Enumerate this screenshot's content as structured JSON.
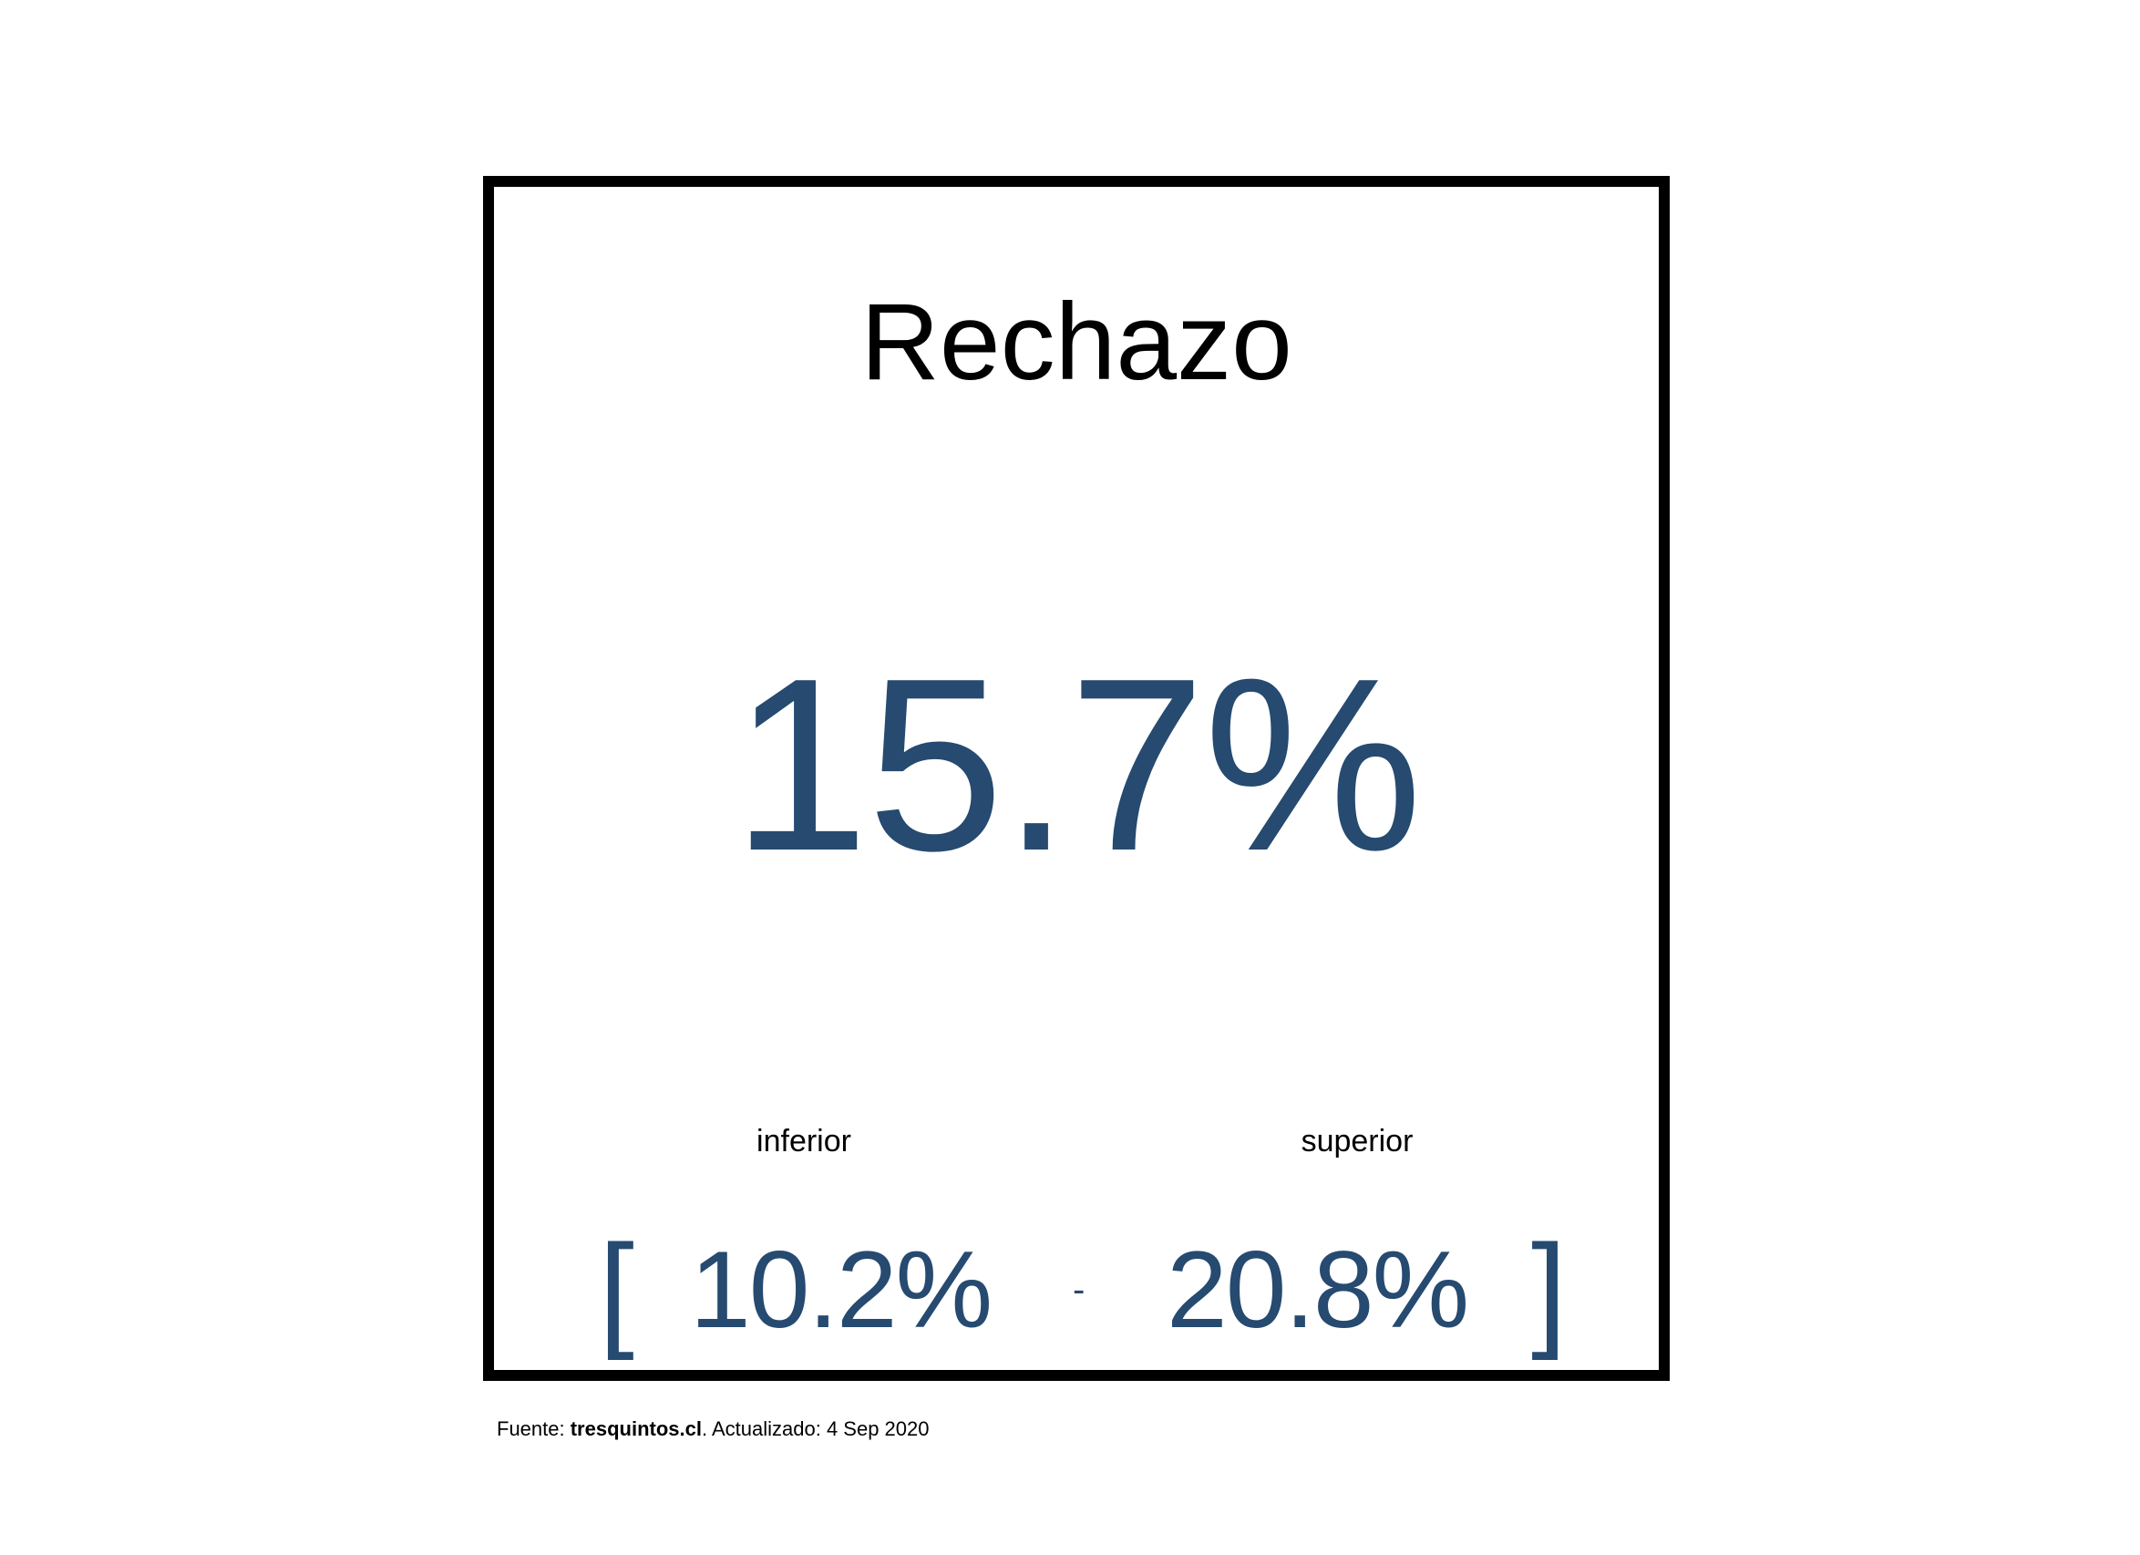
{
  "card": {
    "title": "Rechazo",
    "value": "15.7%",
    "lower_label": "inferior",
    "upper_label": "superior",
    "bracket_open": "[",
    "bracket_close": "]",
    "lower_value": "10.2%",
    "separator": "-",
    "upper_value": "20.8%"
  },
  "footer": {
    "prefix": "Fuente: ",
    "source": "tresquintos.cl",
    "suffix": ". Actualizado: 4 Sep 2020"
  },
  "colors": {
    "value": "#264a70",
    "text": "#000000",
    "border": "#000000",
    "background": "#ffffff"
  }
}
